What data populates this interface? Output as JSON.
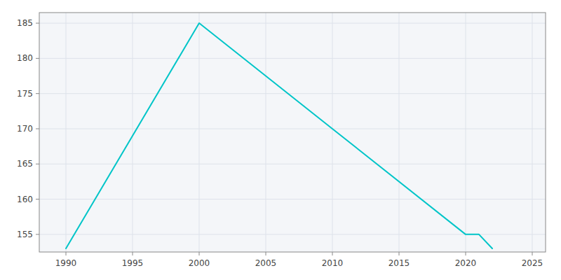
{
  "chart_data": {
    "type": "line",
    "x": [
      1990,
      2000,
      2010,
      2020,
      2021,
      2022
    ],
    "values": [
      153,
      185,
      170,
      155,
      155,
      153
    ],
    "color": "#00C5C8",
    "xlim": [
      1988,
      2026
    ],
    "ylim": [
      152.5,
      186.5
    ],
    "xticks": [
      1990,
      1995,
      2000,
      2005,
      2010,
      2015,
      2020,
      2025
    ],
    "yticks": [
      155,
      160,
      165,
      170,
      175,
      180,
      185
    ],
    "grid": true
  }
}
